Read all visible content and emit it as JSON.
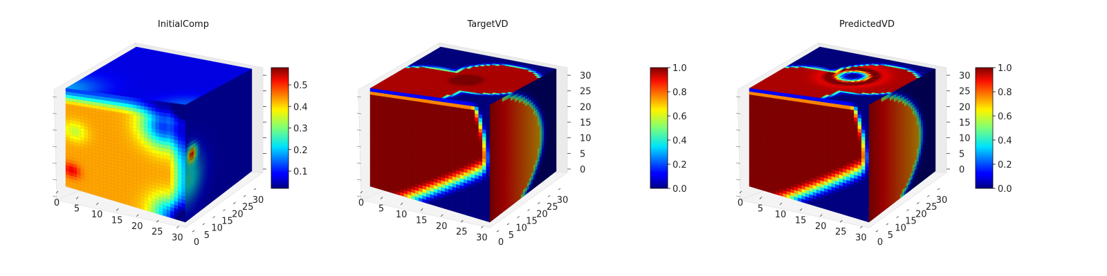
{
  "figure": {
    "panels": [
      {
        "title": "InitialComp",
        "field": "initial",
        "colorbar": {
          "min": 0.02,
          "max": 0.58,
          "ticks": [
            "0.1",
            "0.2",
            "0.3",
            "0.4",
            "0.5"
          ],
          "tick_values": [
            0.1,
            0.2,
            0.3,
            0.4,
            0.5
          ],
          "tick_labels_bound": true
        },
        "z_ticks_labeled": false
      },
      {
        "title": "TargetVD",
        "field": "target",
        "colorbar": {
          "min": 0.0,
          "max": 1.0,
          "ticks": [
            "0.0",
            "0.2",
            "0.4",
            "0.6",
            "0.8",
            "1.0"
          ],
          "tick_values": [
            0.0,
            0.2,
            0.4,
            0.6,
            0.8,
            1.0
          ]
        },
        "z_ticks_labeled": true
      },
      {
        "title": "PredictedVD",
        "field": "predicted",
        "colorbar": {
          "min": 0.0,
          "max": 1.0,
          "ticks": [
            "0.0",
            "0.2",
            "0.4",
            "0.6",
            "0.8",
            "1.0"
          ],
          "tick_values": [
            0.0,
            0.2,
            0.4,
            0.6,
            0.8,
            1.0
          ]
        },
        "z_ticks_labeled": true
      }
    ]
  },
  "chart_data": [
    {
      "type": "heatmap",
      "subtype": "3d-voxel-cube",
      "title": "InitialComp",
      "colormap": "jet",
      "x_ticks": [
        "0",
        "5",
        "10",
        "15",
        "20",
        "25",
        "30"
      ],
      "y_ticks": [
        "0",
        "5",
        "10",
        "15",
        "20",
        "25",
        "30"
      ],
      "z_ticks": [],
      "xlim": [
        0,
        32
      ],
      "ylim": [
        0,
        32
      ],
      "zlim": [
        0,
        32
      ],
      "color_range": [
        0.02,
        0.58
      ],
      "colorbar_ticks": [
        0.1,
        0.2,
        0.3,
        0.4,
        0.5
      ]
    },
    {
      "type": "heatmap",
      "subtype": "3d-voxel-cube",
      "title": "TargetVD",
      "colormap": "jet",
      "x_ticks": [
        "0",
        "5",
        "10",
        "15",
        "20",
        "25",
        "30"
      ],
      "y_ticks": [
        "0",
        "5",
        "10",
        "15",
        "20",
        "25",
        "30"
      ],
      "z_ticks": [
        "0",
        "5",
        "10",
        "15",
        "20",
        "25",
        "30"
      ],
      "xlim": [
        0,
        32
      ],
      "ylim": [
        0,
        32
      ],
      "zlim": [
        0,
        32
      ],
      "color_range": [
        0.0,
        1.0
      ],
      "colorbar_ticks": [
        0.0,
        0.2,
        0.4,
        0.6,
        0.8,
        1.0
      ]
    },
    {
      "type": "heatmap",
      "subtype": "3d-voxel-cube",
      "title": "PredictedVD",
      "colormap": "jet",
      "x_ticks": [
        "0",
        "5",
        "10",
        "15",
        "20",
        "25",
        "30"
      ],
      "y_ticks": [
        "0",
        "5",
        "10",
        "15",
        "20",
        "25",
        "30"
      ],
      "z_ticks": [
        "0",
        "5",
        "10",
        "15",
        "20",
        "25",
        "30"
      ],
      "xlim": [
        0,
        32
      ],
      "ylim": [
        0,
        32
      ],
      "zlim": [
        0,
        32
      ],
      "color_range": [
        0.0,
        1.0
      ],
      "colorbar_ticks": [
        0.0,
        0.2,
        0.4,
        0.6,
        0.8,
        1.0
      ]
    }
  ]
}
